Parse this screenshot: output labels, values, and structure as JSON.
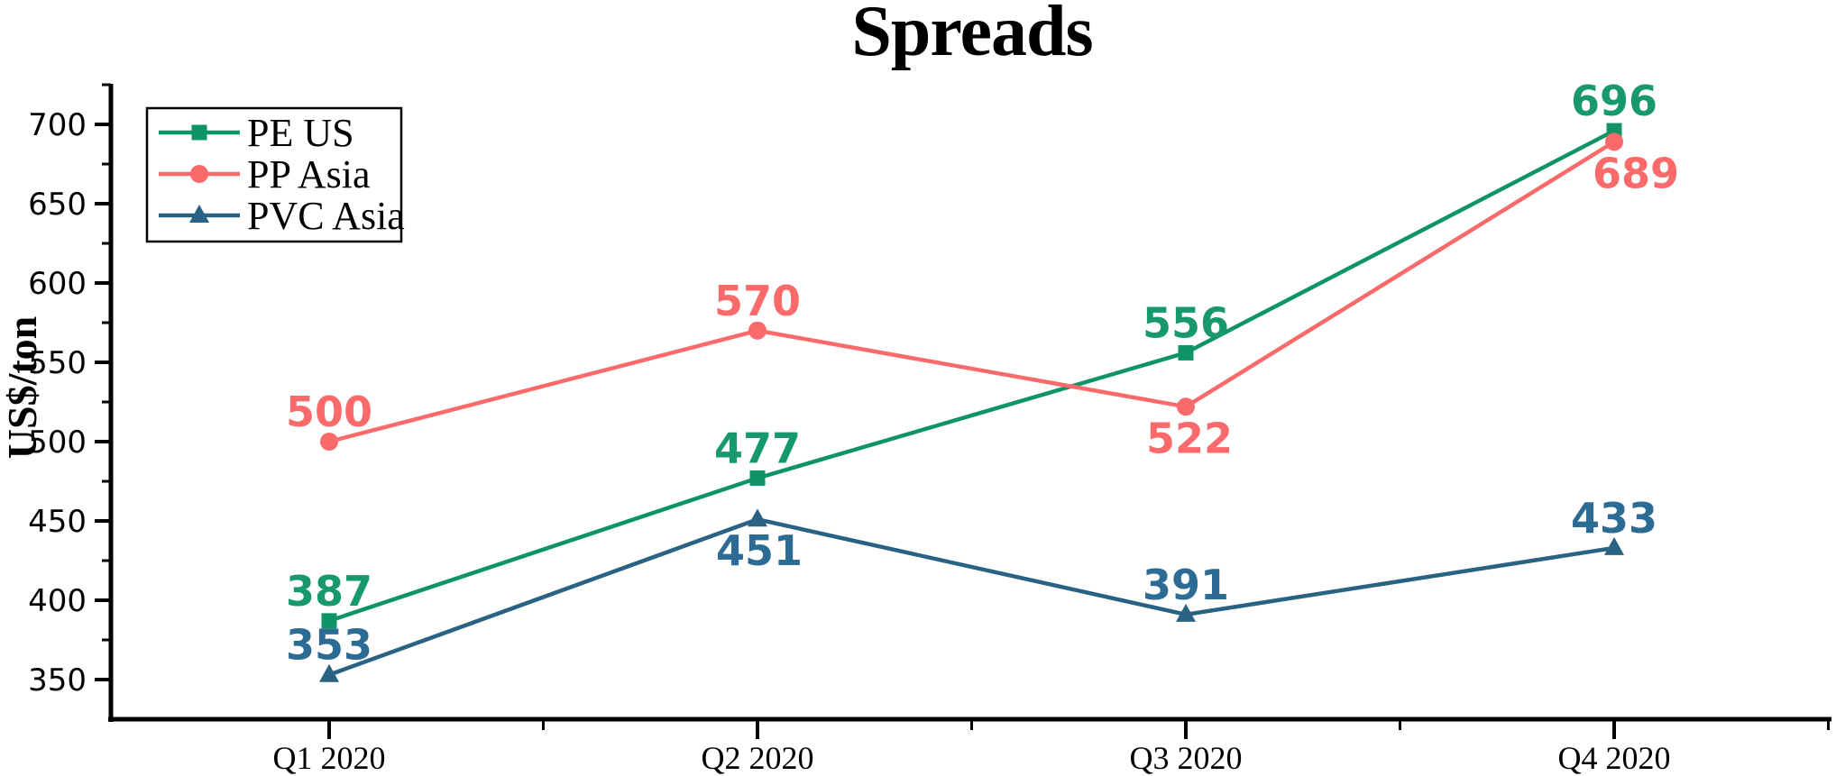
{
  "title": "Spreads",
  "chart_data": {
    "type": "line",
    "title": "Spreads",
    "xlabel": "",
    "ylabel": "US$/ton",
    "categories": [
      "Q1 2020",
      "Q2 2020",
      "Q3 2020",
      "Q4 2020"
    ],
    "y_ticks": [
      350,
      400,
      450,
      500,
      550,
      600,
      650,
      700
    ],
    "y_minor_ticks": [
      375,
      425,
      475,
      525,
      575,
      625,
      675,
      725
    ],
    "ylim": [
      324,
      727
    ],
    "grid": false,
    "legend_position": "top-left",
    "axis_color": "#000000",
    "series": [
      {
        "name": "PE US",
        "marker": "square",
        "color": "#0E9467",
        "label_color": "#17996C",
        "values": [
          387,
          477,
          556,
          696
        ],
        "label_positions": [
          "above",
          "above",
          "above",
          "above"
        ],
        "label_dx": [
          0,
          0,
          0,
          0
        ]
      },
      {
        "name": "PP Asia",
        "marker": "circle",
        "color": "#FB6A6A",
        "label_color": "#FB6A6A",
        "values": [
          500,
          570,
          522,
          689
        ],
        "label_positions": [
          "above",
          "above",
          "below",
          "below"
        ],
        "label_dx": [
          0,
          0,
          4,
          24
        ]
      },
      {
        "name": "PVC Asia",
        "marker": "triangle",
        "color": "#2A6283",
        "label_color": "#2C6B94",
        "values": [
          353,
          451,
          391,
          433
        ],
        "label_positions": [
          "above",
          "below",
          "above",
          "above"
        ],
        "label_dx": [
          0,
          2,
          0,
          0
        ]
      }
    ]
  }
}
